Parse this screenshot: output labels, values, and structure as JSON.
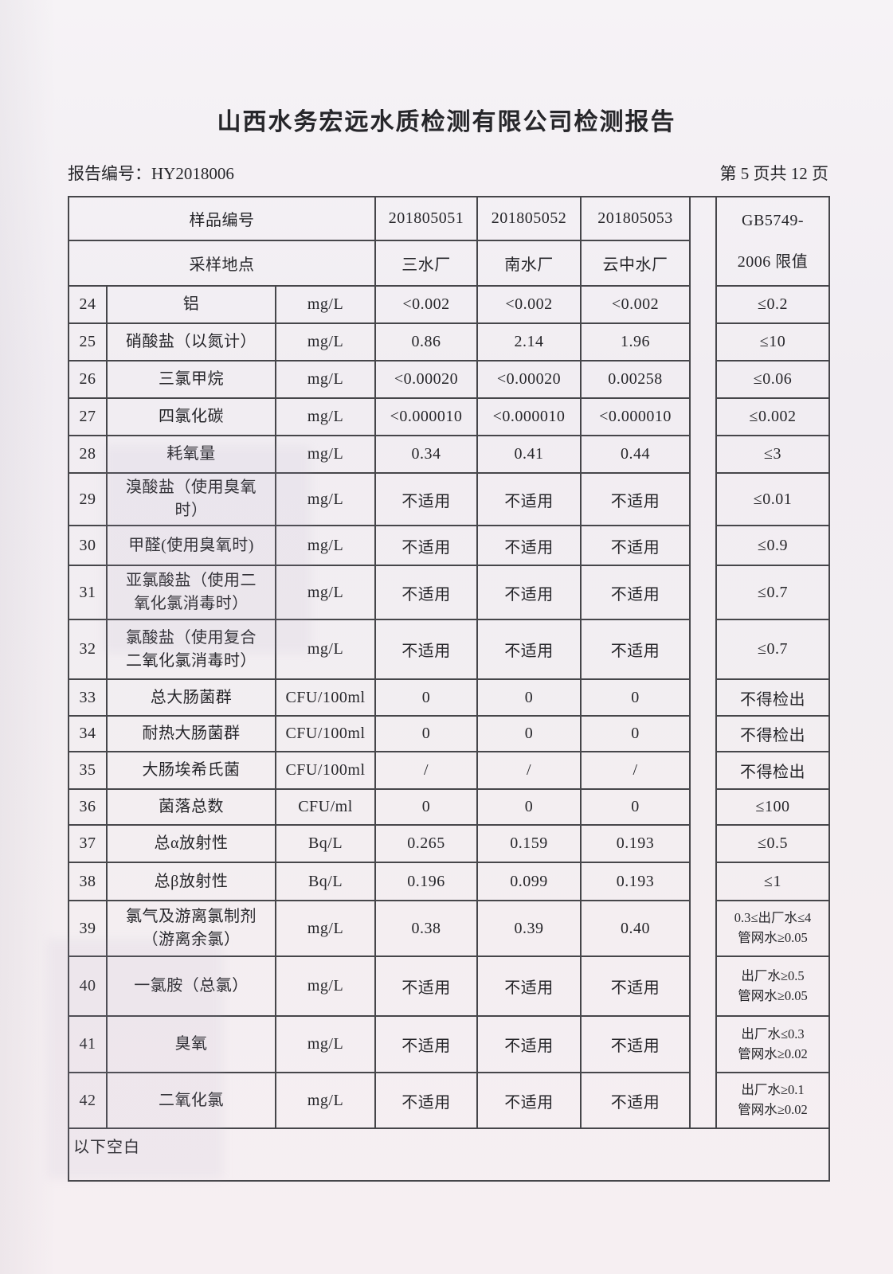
{
  "page": {
    "title": "山西水务宏远水质检测有限公司检测报告",
    "report_no": "报告编号：HY2018006",
    "page_indicator": "第 5 页共 12 页"
  },
  "table": {
    "header": {
      "sample_id_label": "样品编号",
      "location_label": "采样地点",
      "sample_ids": [
        "201805051",
        "201805052",
        "201805053"
      ],
      "locations": [
        "三水厂",
        "南水厂",
        "云中水厂"
      ],
      "limit_header": "GB5749-\n2006 限值"
    },
    "rows": [
      {
        "num": "24",
        "name": "铝",
        "unit": "mg/L",
        "values": [
          "<0.002",
          "<0.002",
          "<0.002"
        ],
        "limit": "≤0.2"
      },
      {
        "num": "25",
        "name": "硝酸盐（以氮计）",
        "unit": "mg/L",
        "values": [
          "0.86",
          "2.14",
          "1.96"
        ],
        "limit": "≤10"
      },
      {
        "num": "26",
        "name": "三氯甲烷",
        "unit": "mg/L",
        "values": [
          "<0.00020",
          "<0.00020",
          "0.00258"
        ],
        "limit": "≤0.06"
      },
      {
        "num": "27",
        "name": "四氯化碳",
        "unit": "mg/L",
        "values": [
          "<0.000010",
          "<0.000010",
          "<0.000010"
        ],
        "limit": "≤0.002"
      },
      {
        "num": "28",
        "name": "耗氧量",
        "unit": "mg/L",
        "values": [
          "0.34",
          "0.41",
          "0.44"
        ],
        "limit": "≤3"
      },
      {
        "num": "29",
        "name": "溴酸盐（使用臭氧\n时）",
        "unit": "mg/L",
        "values": [
          "不适用",
          "不适用",
          "不适用"
        ],
        "limit": "≤0.01"
      },
      {
        "num": "30",
        "name": "甲醛(使用臭氧时)",
        "unit": "mg/L",
        "values": [
          "不适用",
          "不适用",
          "不适用"
        ],
        "limit": "≤0.9"
      },
      {
        "num": "31",
        "name": "亚氯酸盐（使用二\n氧化氯消毒时）",
        "unit": "mg/L",
        "values": [
          "不适用",
          "不适用",
          "不适用"
        ],
        "limit": "≤0.7"
      },
      {
        "num": "32",
        "name": "氯酸盐（使用复合\n二氧化氯消毒时）",
        "unit": "mg/L",
        "values": [
          "不适用",
          "不适用",
          "不适用"
        ],
        "limit": "≤0.7"
      },
      {
        "num": "33",
        "name": "总大肠菌群",
        "unit": "CFU/100ml",
        "values": [
          "0",
          "0",
          "0"
        ],
        "limit": "不得检出"
      },
      {
        "num": "34",
        "name": "耐热大肠菌群",
        "unit": "CFU/100ml",
        "values": [
          "0",
          "0",
          "0"
        ],
        "limit": "不得检出"
      },
      {
        "num": "35",
        "name": "大肠埃希氏菌",
        "unit": "CFU/100ml",
        "values": [
          "/",
          "/",
          "/"
        ],
        "limit": "不得检出"
      },
      {
        "num": "36",
        "name": "菌落总数",
        "unit": "CFU/ml",
        "values": [
          "0",
          "0",
          "0"
        ],
        "limit": "≤100"
      },
      {
        "num": "37",
        "name": "总α放射性",
        "unit": "Bq/L",
        "values": [
          "0.265",
          "0.159",
          "0.193"
        ],
        "limit": "≤0.5"
      },
      {
        "num": "38",
        "name": "总β放射性",
        "unit": "Bq/L",
        "values": [
          "0.196",
          "0.099",
          "0.193"
        ],
        "limit": "≤1"
      },
      {
        "num": "39",
        "name": "氯气及游离氯制剂\n（游离余氯）",
        "unit": "mg/L",
        "values": [
          "0.38",
          "0.39",
          "0.40"
        ],
        "limit": "0.3≤出厂水≤4\n管网水≥0.05"
      },
      {
        "num": "40",
        "name": "一氯胺（总氯）",
        "unit": "mg/L",
        "values": [
          "不适用",
          "不适用",
          "不适用"
        ],
        "limit": "出厂水≥0.5\n管网水≥0.05"
      },
      {
        "num": "41",
        "name": "臭氧",
        "unit": "mg/L",
        "values": [
          "不适用",
          "不适用",
          "不适用"
        ],
        "limit": "出厂水≤0.3\n管网水≥0.02"
      },
      {
        "num": "42",
        "name": "二氧化氯",
        "unit": "mg/L",
        "values": [
          "不适用",
          "不适用",
          "不适用"
        ],
        "limit": "出厂水≥0.1\n管网水≥0.02"
      }
    ],
    "footer_note": "以下空白"
  }
}
